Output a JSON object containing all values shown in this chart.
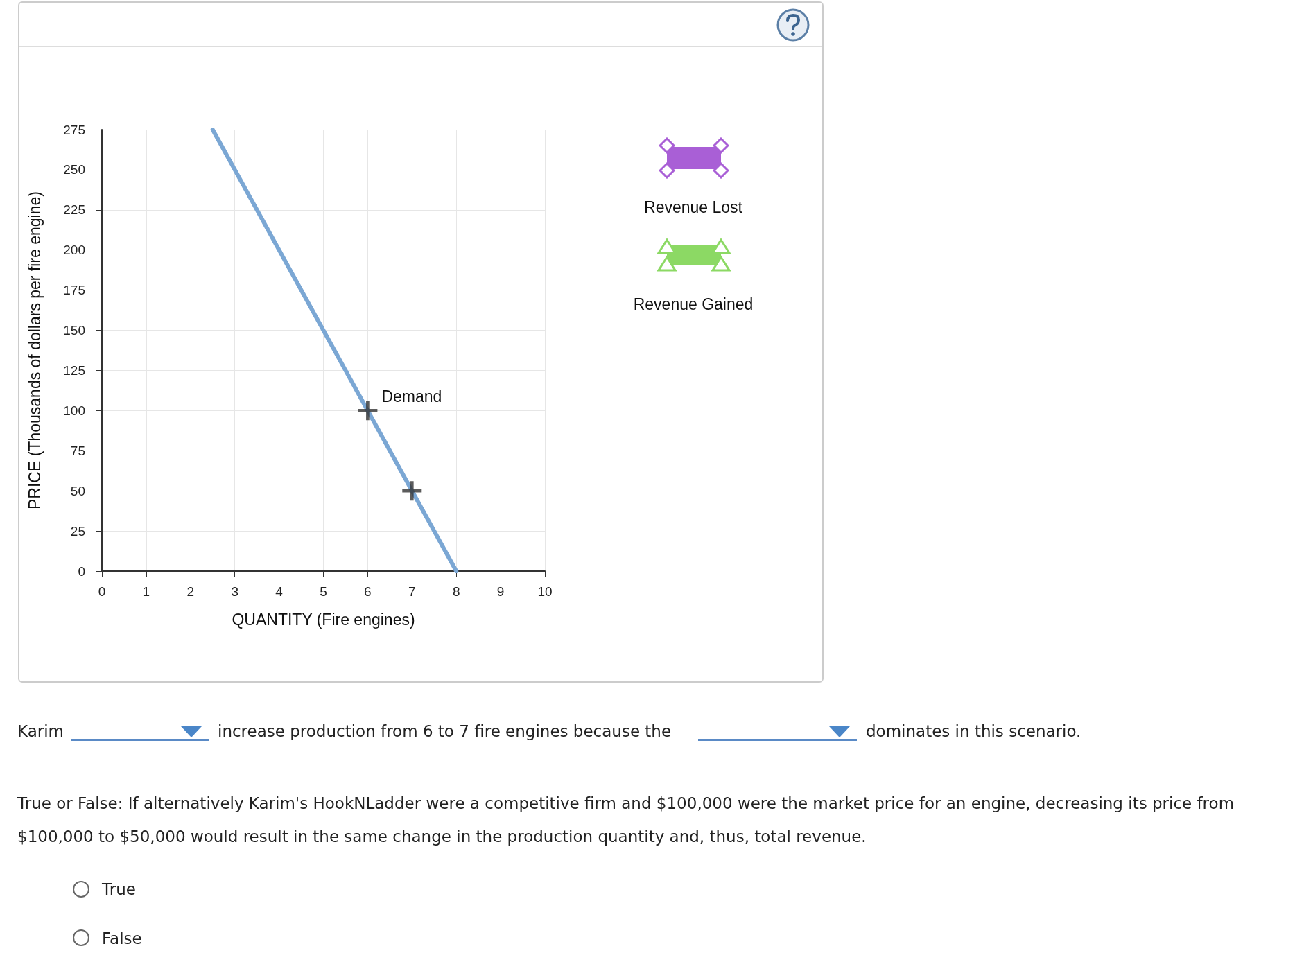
{
  "chart_data": {
    "type": "line",
    "xlabel": "QUANTITY (Fire engines)",
    "ylabel": "PRICE (Thousands of dollars per fire engine)",
    "xlim": [
      0,
      10
    ],
    "xticks": [
      0,
      1,
      2,
      3,
      4,
      5,
      6,
      7,
      8,
      9,
      10
    ],
    "ylim": [
      0,
      275
    ],
    "yticks": [
      0,
      25,
      50,
      75,
      100,
      125,
      150,
      175,
      200,
      225,
      250,
      275
    ],
    "grid": true,
    "legend": false,
    "series": [
      {
        "name": "Demand",
        "color": "#7ba7d4",
        "x": [
          2.5,
          8
        ],
        "values": [
          275,
          0
        ],
        "marker": "none",
        "line_style": "solid"
      },
      {
        "type": "scatter",
        "color": "#333333",
        "x": [
          6,
          7
        ],
        "values": [
          100,
          50
        ],
        "marker": "cross"
      }
    ],
    "annotations": [
      "Revenue Lost",
      "Revenue Gained",
      "Karim",
      "increase production from 6 to 7 fire engines because the",
      "dominates in this scenario.",
      "True or False: If alternatively Karim's HookNLadder were a competitive firm and $100,000 were the market price for an engine, decreasing its price from $100,000 to $50,000 would result in the same change in the production quantity and, thus, total revenue.",
      "True",
      "False"
    ]
  }
}
